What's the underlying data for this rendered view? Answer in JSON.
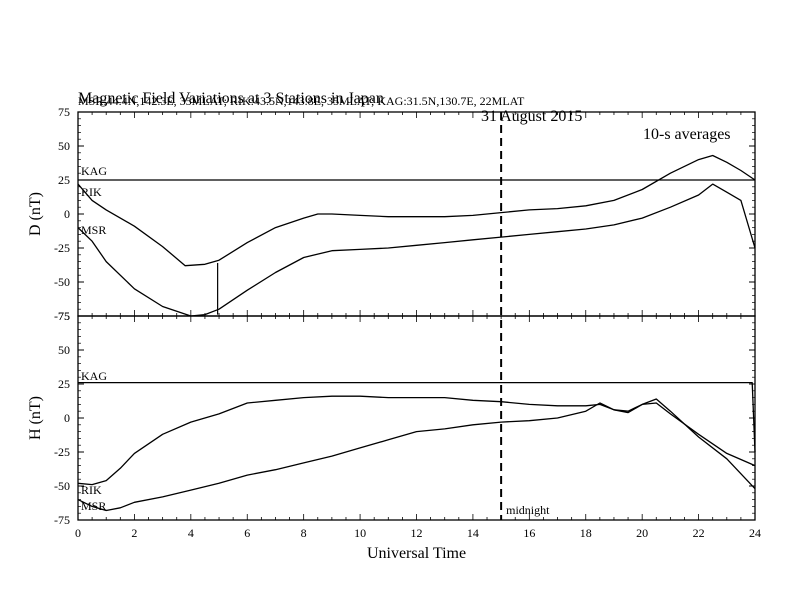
{
  "header": {
    "title": "Magnetic Field Variations at 3 Stations in Japan",
    "date": "31  August  2015",
    "averaging": "10-s averages",
    "stations": "MSR:44.4N,142.3E, 35MLAT;  RIK:43.5N,143.8E, 35MLAT;  KAG:31.5N,130.7E, 22MLAT"
  },
  "chart_data": [
    {
      "type": "line",
      "panel": "D",
      "ylabel": "D (nT)",
      "xlim": [
        0,
        24
      ],
      "ylim": [
        -75,
        75
      ],
      "yticks": [
        -75,
        -50,
        -25,
        0,
        25,
        50,
        75
      ],
      "series": [
        {
          "name": "KAG",
          "x": [
            0,
            2,
            4,
            6,
            8,
            10,
            12,
            14,
            16,
            18,
            20,
            22,
            23.9,
            24
          ],
          "y": [
            25,
            25,
            25,
            25,
            25,
            25,
            25,
            25,
            25,
            25,
            25,
            25,
            25,
            25
          ]
        },
        {
          "name": "RIK",
          "x": [
            0,
            0.5,
            1,
            2,
            3,
            3.8,
            4.5,
            5,
            6,
            7,
            8,
            8.5,
            9,
            10,
            11,
            12,
            13,
            14,
            15,
            16,
            17,
            18,
            19,
            20,
            21,
            22,
            22.5,
            23,
            23.5,
            24
          ],
          "y": [
            22,
            10,
            3,
            -9,
            -24,
            -38,
            -37,
            -34,
            -21,
            -10,
            -3,
            0,
            0,
            -1,
            -2,
            -2,
            -2,
            -1,
            1,
            3,
            4,
            6,
            10,
            18,
            30,
            40,
            43,
            38,
            32,
            25
          ]
        },
        {
          "name": "MSR",
          "x": [
            0,
            0.5,
            1,
            2,
            3,
            4,
            4.5,
            5,
            6,
            7,
            8,
            9,
            10,
            11,
            12,
            13,
            14,
            15,
            16,
            17,
            18,
            19,
            20,
            21,
            22,
            22.5,
            23,
            23.5,
            24
          ],
          "y": [
            -10,
            -20,
            -35,
            -55,
            -68,
            -75,
            -74,
            -70,
            -56,
            -43,
            -32,
            -27,
            -26,
            -25,
            -23,
            -21,
            -19,
            -17,
            -15,
            -13,
            -11,
            -8,
            -3,
            5,
            14,
            22,
            16,
            10,
            -25
          ]
        }
      ],
      "annotations": [
        "KAG",
        "RIK",
        "MSR"
      ]
    },
    {
      "type": "line",
      "panel": "H",
      "xlabel": "Universal Time",
      "ylabel": "H (nT)",
      "xlim": [
        0,
        24
      ],
      "ylim": [
        -75,
        75
      ],
      "xticks": [
        0,
        2,
        4,
        6,
        8,
        10,
        12,
        14,
        16,
        18,
        20,
        22,
        24
      ],
      "yticks": [
        -75,
        -50,
        -25,
        0,
        25,
        50,
        75
      ],
      "series": [
        {
          "name": "KAG",
          "x": [
            0,
            2,
            4,
            6,
            8,
            10,
            12,
            14,
            16,
            18,
            20,
            22,
            23.9,
            24
          ],
          "y": [
            26,
            26,
            26,
            26,
            26,
            26,
            26,
            26,
            26,
            26,
            26,
            26,
            26,
            -25
          ]
        },
        {
          "name": "RIK",
          "x": [
            0,
            0.5,
            1,
            1.5,
            2,
            3,
            4,
            5,
            6,
            7,
            8,
            9,
            10,
            11,
            12,
            13,
            14,
            15,
            16,
            17,
            18,
            18.5,
            19,
            19.5,
            20,
            20.5,
            21,
            22,
            23,
            24
          ],
          "y": [
            -48,
            -49,
            -46,
            -37,
            -26,
            -12,
            -3,
            3,
            11,
            13,
            15,
            16,
            16,
            15,
            15,
            15,
            13,
            12,
            10,
            9,
            9,
            10,
            6,
            5,
            10,
            11,
            3,
            -12,
            -26,
            -35
          ]
        },
        {
          "name": "MSR",
          "x": [
            0,
            0.5,
            1,
            1.5,
            2,
            3,
            4,
            5,
            6,
            7,
            8,
            9,
            10,
            11,
            12,
            13,
            14,
            15,
            16,
            17,
            18,
            18.5,
            19,
            19.5,
            20,
            20.5,
            21,
            22,
            23,
            24
          ],
          "y": [
            -60,
            -65,
            -68,
            -66,
            -62,
            -58,
            -53,
            -48,
            -42,
            -38,
            -33,
            -28,
            -22,
            -16,
            -10,
            -8,
            -5,
            -3,
            -2,
            0,
            5,
            11,
            6,
            4,
            10,
            14,
            5,
            -14,
            -30,
            -52
          ]
        }
      ],
      "annotations": [
        "KAG",
        "RIK",
        "MSR",
        "midnight"
      ],
      "reference_line": {
        "x": 15,
        "style": "dashed",
        "label": "midnight"
      }
    }
  ]
}
